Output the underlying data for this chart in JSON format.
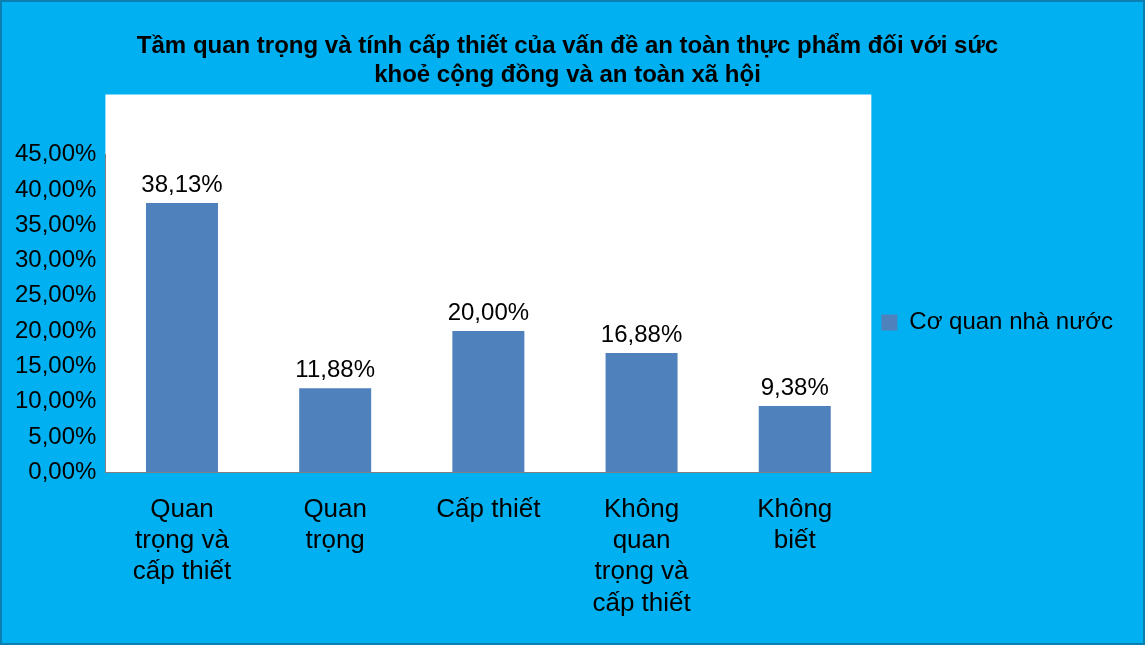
{
  "chart_data": {
    "type": "bar",
    "title": "Tầm quan trọng và tính cấp thiết của vấn đề an toàn thực phẩm đối với sức khoẻ cộng đồng và an toàn xã hội",
    "categories": [
      "Quan trọng và cấp thiết",
      "Quan trọng",
      "Cấp thiết",
      "Không quan trọng và cấp thiết",
      "Không biết"
    ],
    "series": [
      {
        "name": "Cơ quan nhà nước",
        "color": "#4f81bd",
        "values": [
          38.13,
          11.88,
          20.0,
          16.88,
          9.38
        ],
        "value_labels": [
          "38,13%",
          "11,88%",
          "20,00%",
          "16,88%",
          "9,38%"
        ]
      }
    ],
    "ylim": [
      0,
      45
    ],
    "yticks": [
      {
        "value": 0,
        "label": "0,00%"
      },
      {
        "value": 5,
        "label": "5,00%"
      },
      {
        "value": 10,
        "label": "10,00%"
      },
      {
        "value": 15,
        "label": "15,00%"
      },
      {
        "value": 20,
        "label": "20,00%"
      },
      {
        "value": 25,
        "label": "25,00%"
      },
      {
        "value": 30,
        "label": "30,00%"
      },
      {
        "value": 35,
        "label": "35,00%"
      },
      {
        "value": 40,
        "label": "40,00%"
      },
      {
        "value": 45,
        "label": "45,00%"
      }
    ],
    "grid": false,
    "legend": "right"
  }
}
